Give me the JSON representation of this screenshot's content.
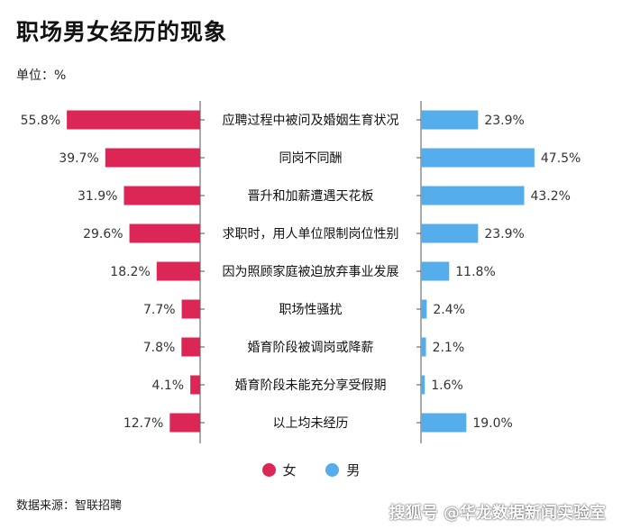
{
  "title": "职场男女经历的现象",
  "unit": "单位：%",
  "source": "数据来源：智联招聘",
  "watermark": "搜狐号 @华龙数据新闻实验室",
  "colors": {
    "female": "#dc2756",
    "male": "#56adec",
    "axis": "#555555"
  },
  "chart_data": {
    "type": "bar",
    "orientation": "horizontal",
    "layout": "diverging",
    "categories": [
      "应聘过程中被问及婚姻生育状况",
      "同岗不同酬",
      "晋升和加薪遭遇天花板",
      "求职时，用人单位限制岗位性别",
      "因为照顾家庭被迫放弃事业发展",
      "职场性骚扰",
      "婚育阶段被调岗或降薪",
      "婚育阶段未能充分享受假期",
      "以上均未经历"
    ],
    "series": [
      {
        "name": "女",
        "values": [
          55.8,
          39.7,
          31.9,
          29.6,
          18.2,
          7.7,
          7.8,
          4.1,
          12.7
        ],
        "labels": [
          "55.8%",
          "39.7%",
          "31.9%",
          "29.6%",
          "18.2%",
          "7.7%",
          "7.8%",
          "4.1%",
          "12.7%"
        ]
      },
      {
        "name": "男",
        "values": [
          23.9,
          47.5,
          43.2,
          23.9,
          11.8,
          2.4,
          2.1,
          1.6,
          19.0
        ],
        "labels": [
          "23.9%",
          "47.5%",
          "43.2%",
          "23.9%",
          "11.8%",
          "2.4%",
          "2.1%",
          "1.6%",
          "19.0%"
        ]
      }
    ],
    "legend_position": "bottom-center",
    "grid": false
  }
}
